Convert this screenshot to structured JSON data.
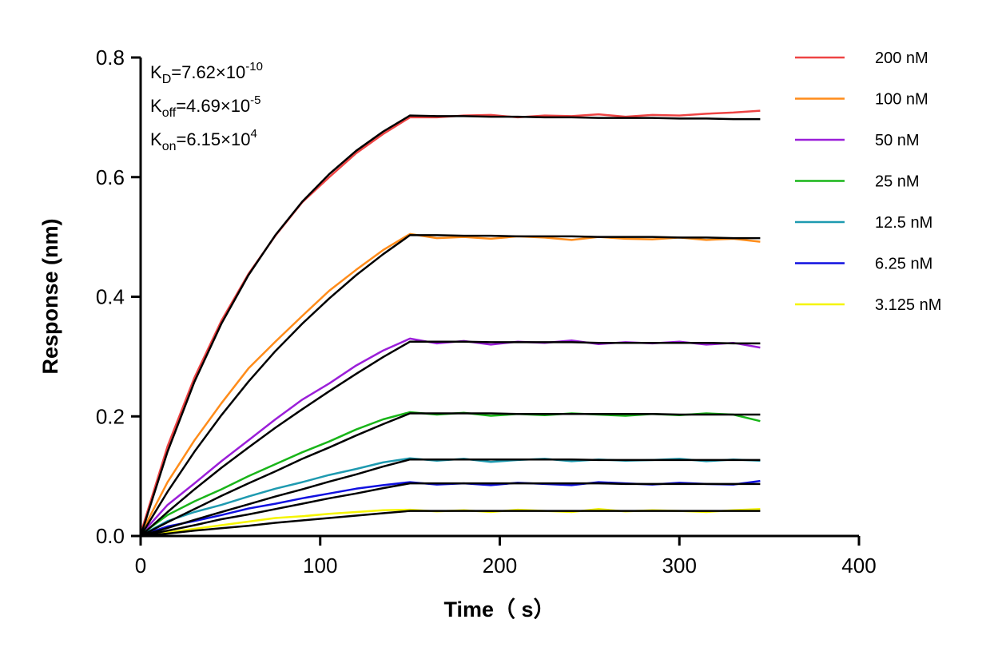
{
  "chart_data": {
    "type": "line",
    "title": "",
    "xlabel": "Time（ s）",
    "ylabel": "Response (nm)",
    "xlim": [
      0,
      400
    ],
    "ylim": [
      0,
      0.8
    ],
    "xticks": [
      "0",
      "100",
      "200",
      "300",
      "400"
    ],
    "yticks": [
      "0.0",
      "0.2",
      "0.4",
      "0.6",
      "0.8"
    ],
    "grid": false,
    "legend_position": "top-right",
    "annotations": {
      "kd": {
        "base": "K",
        "sub": "D",
        "eq": "=7.62×10",
        "sup": "-10"
      },
      "koff": {
        "base": "K",
        "sub": "off",
        "eq": "=4.69×10",
        "sup": "-5"
      },
      "kon": {
        "base": "K",
        "sub": "on",
        "eq": "=6.15×10",
        "sup": "4"
      }
    },
    "fit_color": "#000000",
    "x": [
      0,
      15,
      30,
      45,
      60,
      75,
      90,
      105,
      120,
      135,
      150,
      165,
      180,
      195,
      210,
      225,
      240,
      255,
      270,
      285,
      300,
      315,
      330,
      345
    ],
    "series": [
      {
        "name": "200 nM",
        "color": "#ee4444",
        "measured": [
          0.004,
          0.15,
          0.265,
          0.36,
          0.438,
          0.502,
          0.558,
          0.6,
          0.64,
          0.672,
          0.7,
          0.7,
          0.703,
          0.704,
          0.7,
          0.703,
          0.702,
          0.705,
          0.701,
          0.704,
          0.703,
          0.706,
          0.708,
          0.711
        ],
        "fit": [
          0,
          0.141,
          0.258,
          0.355,
          0.436,
          0.503,
          0.559,
          0.605,
          0.644,
          0.676,
          0.703,
          0.702,
          0.702,
          0.701,
          0.701,
          0.7,
          0.7,
          0.699,
          0.699,
          0.699,
          0.698,
          0.698,
          0.697,
          0.697
        ]
      },
      {
        "name": "100 nM",
        "color": "#ff8c1a",
        "measured": [
          0.003,
          0.09,
          0.16,
          0.222,
          0.28,
          0.325,
          0.368,
          0.41,
          0.445,
          0.478,
          0.505,
          0.498,
          0.5,
          0.497,
          0.501,
          0.499,
          0.495,
          0.5,
          0.497,
          0.496,
          0.499,
          0.495,
          0.497,
          0.492
        ],
        "fit": [
          0,
          0.074,
          0.141,
          0.202,
          0.258,
          0.309,
          0.355,
          0.397,
          0.436,
          0.471,
          0.503,
          0.503,
          0.502,
          0.502,
          0.501,
          0.501,
          0.501,
          0.5,
          0.5,
          0.5,
          0.499,
          0.499,
          0.498,
          0.498
        ]
      },
      {
        "name": "50 nM",
        "color": "#9b1fd9",
        "measured": [
          0.002,
          0.052,
          0.088,
          0.125,
          0.16,
          0.195,
          0.228,
          0.255,
          0.285,
          0.31,
          0.33,
          0.322,
          0.326,
          0.32,
          0.325,
          0.323,
          0.327,
          0.321,
          0.324,
          0.322,
          0.325,
          0.32,
          0.323,
          0.315
        ],
        "fit": [
          0,
          0.04,
          0.078,
          0.114,
          0.148,
          0.181,
          0.212,
          0.242,
          0.271,
          0.299,
          0.325,
          0.325,
          0.325,
          0.324,
          0.324,
          0.324,
          0.324,
          0.323,
          0.323,
          0.323,
          0.323,
          0.323,
          0.322,
          0.322
        ]
      },
      {
        "name": "25 nM",
        "color": "#19b519",
        "measured": [
          0.002,
          0.035,
          0.058,
          0.078,
          0.1,
          0.12,
          0.14,
          0.158,
          0.178,
          0.195,
          0.207,
          0.203,
          0.206,
          0.201,
          0.204,
          0.202,
          0.205,
          0.203,
          0.201,
          0.204,
          0.202,
          0.205,
          0.203,
          0.192
        ],
        "fit": [
          0,
          0.023,
          0.045,
          0.067,
          0.088,
          0.108,
          0.129,
          0.148,
          0.168,
          0.187,
          0.205,
          0.205,
          0.205,
          0.205,
          0.204,
          0.204,
          0.204,
          0.204,
          0.204,
          0.204,
          0.203,
          0.203,
          0.203,
          0.203
        ]
      },
      {
        "name": "12.5 nM",
        "color": "#1e9ab0",
        "measured": [
          0.001,
          0.025,
          0.04,
          0.052,
          0.066,
          0.079,
          0.09,
          0.102,
          0.112,
          0.123,
          0.13,
          0.126,
          0.129,
          0.124,
          0.127,
          0.129,
          0.125,
          0.128,
          0.126,
          0.127,
          0.129,
          0.125,
          0.128,
          0.126
        ],
        "fit": [
          0,
          0.0135,
          0.027,
          0.04,
          0.053,
          0.066,
          0.078,
          0.091,
          0.103,
          0.116,
          0.128,
          0.128,
          0.128,
          0.128,
          0.128,
          0.128,
          0.128,
          0.127,
          0.127,
          0.127,
          0.127,
          0.127,
          0.127,
          0.127
        ]
      },
      {
        "name": "6.25 nM",
        "color": "#1010e0",
        "measured": [
          0.001,
          0.016,
          0.025,
          0.035,
          0.046,
          0.054,
          0.063,
          0.071,
          0.079,
          0.085,
          0.09,
          0.086,
          0.088,
          0.085,
          0.089,
          0.087,
          0.085,
          0.09,
          0.088,
          0.086,
          0.089,
          0.087,
          0.086,
          0.092
        ],
        "fit": [
          0,
          0.009,
          0.018,
          0.028,
          0.036,
          0.045,
          0.054,
          0.063,
          0.071,
          0.08,
          0.088,
          0.088,
          0.088,
          0.088,
          0.088,
          0.088,
          0.088,
          0.088,
          0.087,
          0.087,
          0.087,
          0.087,
          0.087,
          0.087
        ]
      },
      {
        "name": "3.125 nM",
        "color": "#f5f500",
        "measured": [
          0.001,
          0.006,
          0.012,
          0.018,
          0.024,
          0.03,
          0.033,
          0.037,
          0.04,
          0.043,
          0.044,
          0.041,
          0.043,
          0.04,
          0.044,
          0.042,
          0.04,
          0.045,
          0.041,
          0.043,
          0.042,
          0.04,
          0.043,
          0.045
        ],
        "fit": [
          0,
          0.004,
          0.009,
          0.013,
          0.017,
          0.022,
          0.026,
          0.03,
          0.034,
          0.038,
          0.042,
          0.042,
          0.042,
          0.042,
          0.042,
          0.042,
          0.042,
          0.042,
          0.042,
          0.042,
          0.042,
          0.042,
          0.042,
          0.042
        ]
      }
    ]
  }
}
